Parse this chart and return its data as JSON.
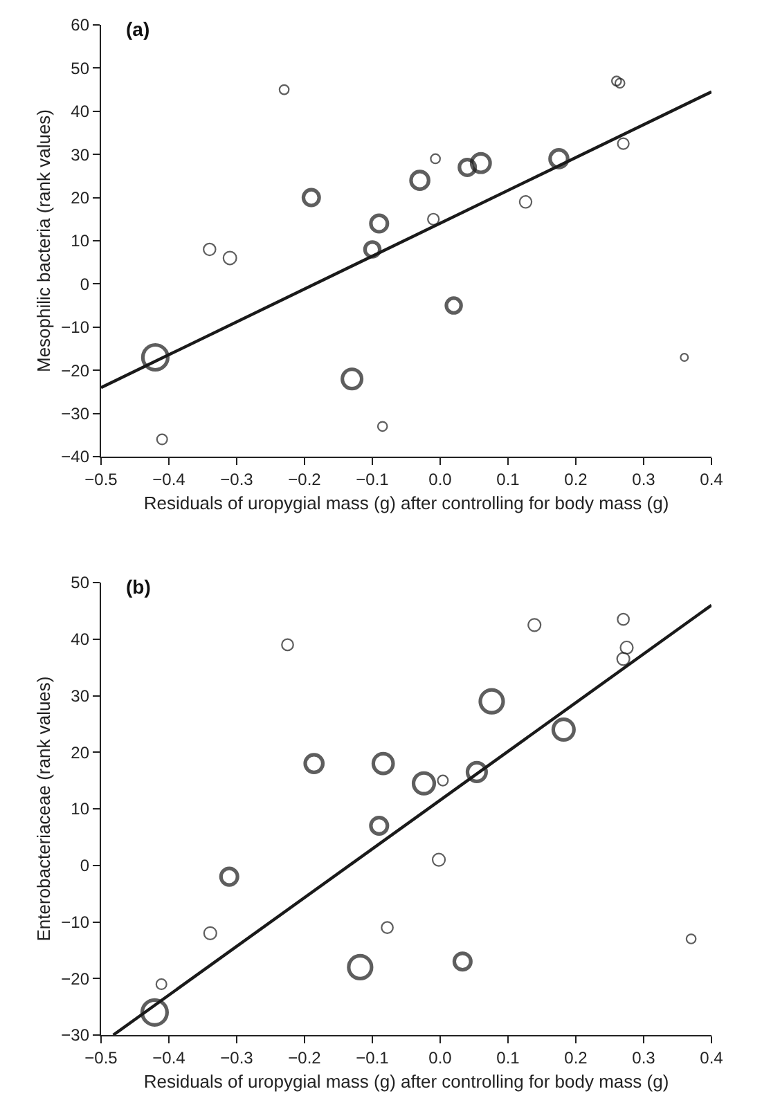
{
  "chart_data": [
    {
      "type": "scatter",
      "title": "(a)",
      "xlabel": "Residuals of uropygial mass (g) after controlling for body mass (g)",
      "ylabel": "Mesophilic bacteria (rank values)",
      "xlim": [
        -0.5,
        0.4
      ],
      "xticks": [
        {
          "value": -0.5,
          "label": "−0.5"
        },
        {
          "value": -0.4,
          "label": "−0.4"
        },
        {
          "value": -0.3,
          "label": "−0.3"
        },
        {
          "value": -0.2,
          "label": "−0.2"
        },
        {
          "value": -0.1,
          "label": "−0.1"
        },
        {
          "value": 0,
          "label": "0.0"
        },
        0.1,
        0.2,
        0.3,
        0.4
      ],
      "ylim": [
        -40,
        60
      ],
      "yticks": [
        {
          "value": -40,
          "label": "−40"
        },
        {
          "value": -30,
          "label": "−30"
        },
        {
          "value": -20,
          "label": "−20"
        },
        {
          "value": -10,
          "label": "−10"
        },
        0,
        10,
        20,
        30,
        40,
        50,
        60
      ],
      "grid": false,
      "series": [
        {
          "marker": "circle",
          "color": "#1a1a1a",
          "x": [
            -0.42,
            -0.41,
            -0.34,
            -0.31,
            -0.23,
            -0.19,
            -0.13,
            -0.1,
            -0.09,
            -0.085,
            -0.03,
            -0.01,
            -0.007,
            0.02,
            0.04,
            0.06,
            0.126,
            0.175,
            0.26,
            0.265,
            0.27,
            0.36
          ],
          "values": [
            -17,
            -36,
            8,
            6,
            45,
            20,
            -22,
            8,
            14,
            -33,
            24,
            15,
            29,
            -5,
            27,
            28,
            19,
            29,
            47,
            46.5,
            32.5,
            -17
          ],
          "sizes": [
            1,
            0.17,
            0.23,
            0.27,
            0.14,
            0.4,
            0.6,
            0.35,
            0.44,
            0.14,
            0.5,
            0.2,
            0.14,
            0.35,
            0.4,
            0.55,
            0.23,
            0.5,
            0.14,
            0.14,
            0.2,
            0.09
          ]
        },
        {
          "type": "line",
          "marker": "none",
          "color": "#1a1a1a",
          "x": [
            -0.5,
            0.4
          ],
          "values": [
            -24,
            44.5
          ]
        }
      ]
    },
    {
      "type": "scatter",
      "title": "(b)",
      "xlabel": "Residuals of uropygial mass (g) after controlling for body mass (g)",
      "ylabel": "Enterobacteriaceae (rank values)",
      "xlim": [
        -0.5,
        0.4
      ],
      "xticks": [
        {
          "value": -0.5,
          "label": "−0.5"
        },
        {
          "value": -0.4,
          "label": "−0.4"
        },
        {
          "value": -0.3,
          "label": "−0.3"
        },
        {
          "value": -0.2,
          "label": "−0.2"
        },
        {
          "value": -0.1,
          "label": "−0.1"
        },
        {
          "value": 0,
          "label": "0.0"
        },
        0.1,
        0.2,
        0.3,
        0.4
      ],
      "ylim": [
        -30,
        50
      ],
      "yticks": [
        {
          "value": -30,
          "label": "−30"
        },
        {
          "value": -20,
          "label": "−20"
        },
        {
          "value": -10,
          "label": "−10"
        },
        0,
        10,
        20,
        30,
        40,
        50
      ],
      "grid": false,
      "series": [
        {
          "marker": "circle",
          "color": "#1a1a1a",
          "x": [
            -0.421,
            -0.411,
            -0.339,
            -0.311,
            -0.225,
            -0.186,
            -0.118,
            -0.09,
            -0.084,
            -0.078,
            -0.024,
            -0.002,
            0.004,
            0.033,
            0.054,
            0.076,
            0.139,
            0.182,
            0.27,
            0.275,
            0.27,
            0.37
          ],
          "values": [
            -26,
            -21,
            -12,
            -2,
            39,
            18,
            -18,
            7,
            18,
            -11,
            14.5,
            1,
            15,
            -17,
            16.5,
            29,
            42.5,
            24,
            43.5,
            38.5,
            36.5,
            -13
          ],
          "sizes": [
            1,
            0.17,
            0.25,
            0.44,
            0.21,
            0.5,
            0.84,
            0.44,
            0.63,
            0.21,
            0.69,
            0.25,
            0.17,
            0.44,
            0.56,
            0.84,
            0.25,
            0.69,
            0.21,
            0.25,
            0.25,
            0.14
          ]
        },
        {
          "type": "line",
          "marker": "none",
          "color": "#1a1a1a",
          "x": [
            -0.482,
            0.4
          ],
          "values": [
            -30,
            46
          ]
        }
      ]
    }
  ]
}
